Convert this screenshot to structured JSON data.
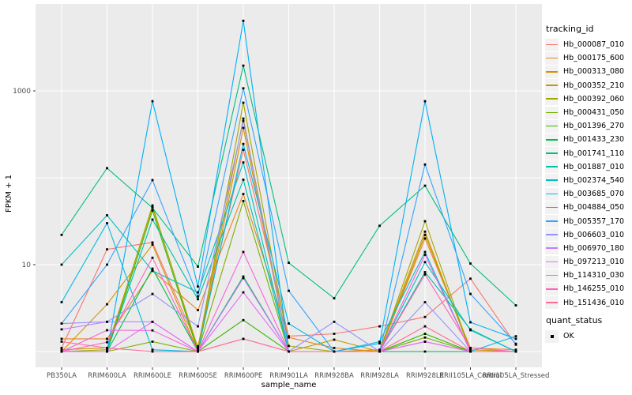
{
  "chart_data": {
    "type": "line",
    "title": "",
    "xlabel": "sample_name",
    "ylabel": "FPKM + 1",
    "yscale": "log10",
    "ylim": [
      1,
      10000
    ],
    "grid": true,
    "gridline_values": [
      1,
      10,
      100,
      1000
    ],
    "ytick_labels": [
      {
        "value": 1000,
        "label": "1000"
      },
      {
        "value": 10,
        "label": "10"
      }
    ],
    "categories": [
      "PB350LA",
      "RRIM600LA",
      "RRIM600LE",
      "RRIM600SE",
      "RRIM600PE",
      "RRIM901LA",
      "RRIM928BA",
      "RRIM928LA",
      "RRIM928LE",
      "RRII105LA_Control",
      "RRII105LA_Stressed"
    ],
    "values_unit": "FPKM + 1 (log10 scale)",
    "point_marker": {
      "shape": "square",
      "color": "#000000"
    },
    "series": [
      {
        "name": "Hb_000087_010",
        "color": "#F8766D",
        "values": [
          1.1,
          15,
          18,
          1.15,
          210,
          1.5,
          1.6,
          1.95,
          2.5,
          6.9,
          1.2
        ]
      },
      {
        "name": "Hb_000175_600",
        "color": "#E88526",
        "values": [
          1.4,
          1.4,
          8.5,
          3.0,
          65,
          1.45,
          1.1,
          1.0,
          20,
          1.1,
          1.05
        ]
      },
      {
        "name": "Hb_000313_080",
        "color": "#D89000",
        "values": [
          1.0,
          3.5,
          17,
          1.0,
          375,
          1.0,
          1.0,
          1.05,
          24,
          1.0,
          1.0
        ]
      },
      {
        "name": "Hb_000352_210",
        "color": "#C09B00",
        "values": [
          1.05,
          1.1,
          46,
          1.1,
          480,
          1.0,
          1.37,
          1.0,
          22,
          1.05,
          1.0
        ]
      },
      {
        "name": "Hb_000392_060",
        "color": "#A3A500",
        "values": [
          1.0,
          1.05,
          48,
          1.05,
          730,
          1.16,
          1.0,
          1.0,
          31.6,
          1.0,
          1.0
        ]
      },
      {
        "name": "Hb_000431_050",
        "color": "#7CAE00",
        "values": [
          1.0,
          1.0,
          1.3,
          1.0,
          54,
          1.0,
          1.0,
          1.0,
          1.45,
          1.0,
          1.0
        ]
      },
      {
        "name": "Hb_001396_270",
        "color": "#39B600",
        "values": [
          1.0,
          1.0,
          42,
          1.0,
          2.3,
          1.0,
          1.0,
          1.0,
          1.6,
          1.0,
          1.0
        ]
      },
      {
        "name": "Hb_001433_230",
        "color": "#00BB4E",
        "values": [
          1.0,
          1.0,
          9.0,
          1.0,
          7.3,
          1.0,
          1.0,
          1.0,
          1.0,
          1.0,
          1.0
        ]
      },
      {
        "name": "Hb_001741_110",
        "color": "#00BF7D",
        "values": [
          22,
          129,
          45,
          9.5,
          1950,
          10.5,
          4.1,
          28,
          81,
          10.3,
          3.4
        ]
      },
      {
        "name": "Hb_001887_010",
        "color": "#00C1A3",
        "values": [
          1.0,
          1.0,
          33,
          4.0,
          95,
          1.0,
          1.0,
          1.0,
          8.2,
          1.8,
          1.0
        ]
      },
      {
        "name": "Hb_002374_540",
        "color": "#00BFC4",
        "values": [
          10,
          37,
          8.5,
          4.8,
          150,
          1.0,
          1.0,
          1.0,
          10.7,
          1.76,
          1.0
        ]
      },
      {
        "name": "Hb_003685_070",
        "color": "#00BAE0",
        "values": [
          3.7,
          30,
          1.05,
          1.0,
          245,
          2.1,
          1.0,
          1.3,
          14,
          1.0,
          1.5
        ]
      },
      {
        "name": "Hb_004884_050",
        "color": "#00B0F6",
        "values": [
          1.0,
          1.0,
          760,
          5.6,
          6400,
          1.0,
          1.0,
          1.24,
          760,
          2.17,
          1.4
        ]
      },
      {
        "name": "Hb_005357_170",
        "color": "#35A2FF",
        "values": [
          2.1,
          10,
          94,
          4.3,
          1070,
          5.0,
          1.0,
          1.0,
          142,
          4.6,
          1.23
        ]
      },
      {
        "name": "Hb_006603_010",
        "color": "#9590FF",
        "values": [
          2.1,
          2.2,
          4.6,
          1.95,
          450,
          1.0,
          2.2,
          1.0,
          3.7,
          1.0,
          1.0
        ]
      },
      {
        "name": "Hb_006970_180",
        "color": "#C77CFF",
        "values": [
          1.8,
          2.2,
          2.2,
          1.0,
          7.0,
          1.0,
          1.0,
          1.0,
          1.3,
          1.0,
          1.0
        ]
      },
      {
        "name": "Hb_097213_010",
        "color": "#E76BF3",
        "values": [
          1.0,
          1.0,
          2.2,
          1.0,
          4.8,
          1.0,
          1.0,
          1.0,
          1.3,
          1.0,
          1.0
        ]
      },
      {
        "name": "Hb_114310_030",
        "color": "#FA62DB",
        "values": [
          1.0,
          1.76,
          1.75,
          1.0,
          14,
          1.0,
          1.0,
          1.0,
          13,
          1.0,
          1.0
        ]
      },
      {
        "name": "Hb_146255_010",
        "color": "#FF62BC",
        "values": [
          1.0,
          1.28,
          12,
          1.0,
          1.4,
          1.0,
          1.0,
          1.0,
          7.7,
          1.1,
          1.0
        ]
      },
      {
        "name": "Hb_151436_010",
        "color": "#FF6A98",
        "values": [
          1.3,
          1.1,
          1.0,
          1.0,
          1.4,
          1.0,
          1.0,
          1.0,
          1.95,
          1.0,
          1.0
        ]
      }
    ],
    "legend": {
      "title": "tracking_id",
      "position": "right"
    },
    "legend2": {
      "title": "quant_status",
      "items": [
        {
          "label": "OK"
        }
      ]
    },
    "colors": {
      "panel_background": "#EBEBEB",
      "gridline": "#FFFFFF",
      "tick_text": "#4D4D4D",
      "axis_title_text": "#000000",
      "legend_key_background": "#F2F2F2",
      "point": "#000000"
    }
  }
}
